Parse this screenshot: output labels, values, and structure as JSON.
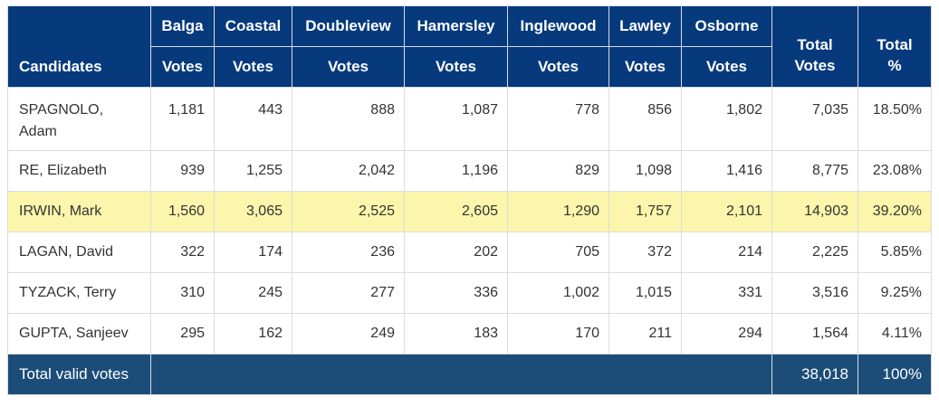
{
  "header": {
    "candidates": "Candidates",
    "booths": [
      "Balga",
      "Coastal",
      "Doubleview",
      "Hamersley",
      "Inglewood",
      "Lawley",
      "Osborne"
    ],
    "votes": "Votes",
    "total_votes": [
      "Total",
      "Votes"
    ],
    "total_pct": [
      "Total",
      "%"
    ]
  },
  "rows": [
    {
      "name_lines": [
        "SPAGNOLO,",
        "Adam"
      ],
      "votes": [
        "1,181",
        "443",
        "888",
        "1,087",
        "778",
        "856",
        "1,802"
      ],
      "total": "7,035",
      "pct": "18.50%"
    },
    {
      "name": "RE, Elizabeth",
      "votes": [
        "939",
        "1,255",
        "2,042",
        "1,196",
        "829",
        "1,098",
        "1,416"
      ],
      "total": "8,775",
      "pct": "23.08%"
    },
    {
      "name": "IRWIN, Mark",
      "votes": [
        "1,560",
        "3,065",
        "2,525",
        "2,605",
        "1,290",
        "1,757",
        "2,101"
      ],
      "total": "14,903",
      "pct": "39.20%",
      "highlight": true
    },
    {
      "name": "LAGAN, David",
      "votes": [
        "322",
        "174",
        "236",
        "202",
        "705",
        "372",
        "214"
      ],
      "total": "2,225",
      "pct": "5.85%"
    },
    {
      "name": "TYZACK, Terry",
      "votes": [
        "310",
        "245",
        "277",
        "336",
        "1,002",
        "1,015",
        "331"
      ],
      "total": "3,516",
      "pct": "9.25%"
    },
    {
      "name": "GUPTA, Sanjeev",
      "votes": [
        "295",
        "162",
        "249",
        "183",
        "170",
        "211",
        "294"
      ],
      "total": "1,564",
      "pct": "4.11%"
    }
  ],
  "footer": {
    "label": "Total valid votes",
    "total": "38,018",
    "pct": "100%"
  },
  "colors": {
    "header_bg": "#063a7c",
    "footer_bg": "#1c4d78",
    "highlight_bg": "#fbf6ab"
  }
}
